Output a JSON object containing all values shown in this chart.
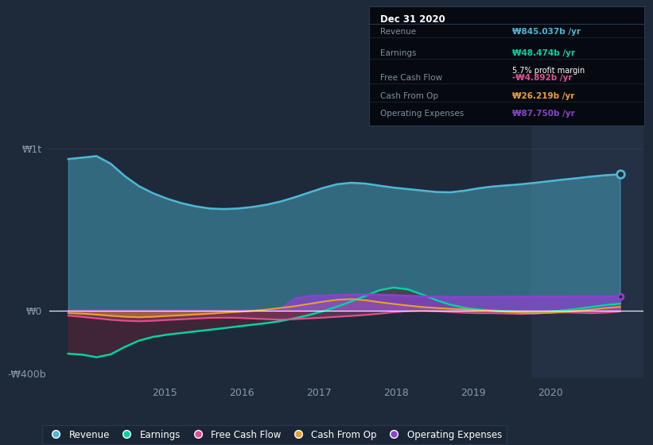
{
  "background_color": "#1e2a3a",
  "plot_bg_color": "#1e2a3a",
  "highlight_bg": "#243044",
  "ylabel_w1t": "₩1t",
  "ylabel_w0": "₩0",
  "ylabel_wn400": "-₩400b",
  "revenue_color": "#4db8d4",
  "earnings_color": "#00d4a0",
  "free_cash_flow_color": "#e05090",
  "cash_from_op_color": "#e8a030",
  "operating_expenses_color": "#8844cc",
  "revenue": [
    950,
    890,
    1050,
    900,
    820,
    760,
    720,
    690,
    660,
    640,
    630,
    620,
    630,
    640,
    650,
    670,
    700,
    730,
    760,
    790,
    800,
    790,
    770,
    760,
    750,
    745,
    730,
    720,
    740,
    760,
    770,
    775,
    780,
    790,
    800,
    810,
    820,
    830,
    840,
    845
  ],
  "earnings": [
    -280,
    -230,
    -340,
    -290,
    -210,
    -180,
    -160,
    -150,
    -140,
    -130,
    -120,
    -110,
    -100,
    -90,
    -80,
    -70,
    -50,
    -30,
    -10,
    20,
    60,
    80,
    140,
    160,
    140,
    100,
    60,
    30,
    10,
    5,
    0,
    -5,
    -10,
    -15,
    -10,
    0,
    10,
    20,
    35,
    48
  ],
  "free_cash_flow": [
    -30,
    -40,
    -50,
    -60,
    -65,
    -70,
    -65,
    -60,
    -55,
    -50,
    -45,
    -45,
    -45,
    -50,
    -55,
    -60,
    -55,
    -50,
    -45,
    -40,
    -35,
    -30,
    -20,
    -10,
    -5,
    0,
    -5,
    -10,
    -15,
    -20,
    -15,
    -20,
    -25,
    -20,
    -15,
    -10,
    -15,
    -20,
    -15,
    -5
  ],
  "cash_from_op": [
    -15,
    -20,
    -25,
    -35,
    -40,
    -45,
    -40,
    -35,
    -30,
    -25,
    -20,
    -15,
    -10,
    -5,
    5,
    15,
    25,
    40,
    55,
    70,
    75,
    65,
    50,
    40,
    30,
    20,
    15,
    10,
    5,
    5,
    -5,
    -10,
    -15,
    -20,
    -15,
    -10,
    -5,
    5,
    15,
    26
  ],
  "operating_expenses": [
    0,
    0,
    0,
    0,
    0,
    0,
    0,
    0,
    0,
    0,
    0,
    0,
    0,
    0,
    0,
    0,
    80,
    90,
    92,
    95,
    98,
    100,
    98,
    95,
    90,
    87,
    85,
    83,
    82,
    82,
    83,
    84,
    85,
    86,
    87,
    87,
    87,
    87,
    87,
    88
  ],
  "legend_items": [
    {
      "label": "Revenue",
      "color": "#4db8d4"
    },
    {
      "label": "Earnings",
      "color": "#00d4a0"
    },
    {
      "label": "Free Cash Flow",
      "color": "#e05090"
    },
    {
      "label": "Cash From Op",
      "color": "#e8a030"
    },
    {
      "label": "Operating Expenses",
      "color": "#8844cc"
    }
  ],
  "info_box": {
    "title": "Dec 31 2020",
    "rows": [
      {
        "label": "Revenue",
        "value": "₩845.037b /yr",
        "color": "#4db8d4"
      },
      {
        "label": "Earnings",
        "value": "₩48.474b /yr",
        "color": "#00d4a0",
        "sub": "5.7% profit margin"
      },
      {
        "label": "Free Cash Flow",
        "value": "-₩4.892b /yr",
        "color": "#e05090"
      },
      {
        "label": "Cash From Op",
        "value": "₩26.219b /yr",
        "color": "#e8a030"
      },
      {
        "label": "Operating Expenses",
        "value": "₩87.750b /yr",
        "color": "#8844cc"
      }
    ]
  },
  "ylim": [
    -420,
    1150
  ],
  "xlim_start": 2013.5,
  "xlim_end": 2021.2,
  "highlight_start": 2019.75,
  "highlight_end": 2021.2,
  "n_points": 40,
  "x_start": 2013.75,
  "x_end": 2020.9
}
